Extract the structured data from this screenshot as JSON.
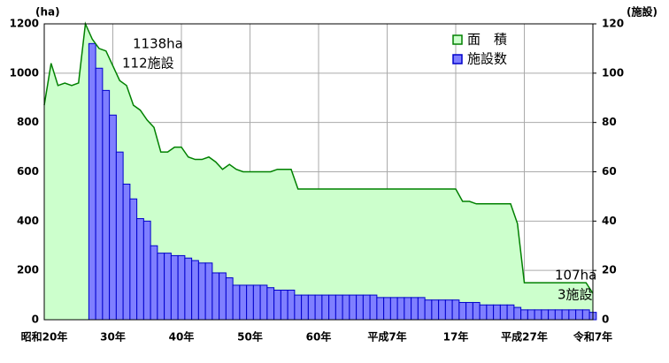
{
  "chart_data": {
    "type": "area_bar",
    "annotations": [
      "1138ha",
      "112施設",
      "107ha",
      "3施設"
    ],
    "y_unit": "(ha)",
    "y2_unit": "(施設)",
    "categories": [
      "昭和20年",
      null,
      null,
      null,
      null,
      null,
      null,
      null,
      null,
      null,
      "30年",
      null,
      null,
      null,
      null,
      null,
      null,
      null,
      null,
      null,
      "40年",
      null,
      null,
      null,
      null,
      null,
      null,
      null,
      null,
      null,
      "50年",
      null,
      null,
      null,
      null,
      null,
      null,
      null,
      null,
      null,
      "60年",
      null,
      null,
      null,
      null,
      null,
      null,
      null,
      null,
      null,
      "平成7年",
      null,
      null,
      null,
      null,
      null,
      null,
      null,
      null,
      null,
      "17年",
      null,
      null,
      null,
      null,
      null,
      null,
      null,
      null,
      null,
      "平成27年",
      null,
      null,
      null,
      null,
      null,
      null,
      null,
      null,
      null,
      "令和7年"
    ],
    "series": [
      {
        "name": "面　積",
        "color": "#008000",
        "fill": "#ccffcc",
        "axis": "y",
        "values": [
          870,
          1040,
          950,
          960,
          950,
          960,
          1200,
          1138,
          1100,
          1090,
          1030,
          970,
          950,
          870,
          850,
          810,
          780,
          680,
          680,
          700,
          700,
          660,
          650,
          650,
          660,
          640,
          610,
          630,
          610,
          600,
          600,
          600,
          600,
          600,
          610,
          610,
          610,
          530,
          530,
          530,
          530,
          530,
          530,
          530,
          530,
          530,
          530,
          530,
          530,
          530,
          530,
          530,
          530,
          530,
          530,
          530,
          530,
          530,
          530,
          530,
          530,
          480,
          480,
          470,
          470,
          470,
          470,
          470,
          470,
          390,
          150,
          150,
          150,
          150,
          150,
          150,
          150,
          150,
          150,
          150,
          107
        ]
      },
      {
        "name": "施設数",
        "color": "#7f7fff",
        "edge": "#0000cc",
        "axis": "y2",
        "values": [
          null,
          null,
          null,
          null,
          null,
          null,
          null,
          112,
          102,
          93,
          83,
          68,
          55,
          49,
          41,
          40,
          30,
          27,
          27,
          26,
          26,
          25,
          24,
          23,
          23,
          19,
          19,
          17,
          14,
          14,
          14,
          14,
          14,
          13,
          12,
          12,
          12,
          10,
          10,
          10,
          10,
          10,
          10,
          10,
          10,
          10,
          10,
          10,
          10,
          9,
          9,
          9,
          9,
          9,
          9,
          9,
          8,
          8,
          8,
          8,
          8,
          7,
          7,
          7,
          6,
          6,
          6,
          6,
          6,
          5,
          4,
          4,
          4,
          4,
          4,
          4,
          4,
          4,
          4,
          4,
          3
        ]
      }
    ],
    "ylim": [
      0,
      1200
    ],
    "yticks": [
      0,
      200,
      400,
      600,
      800,
      1000,
      1200
    ],
    "y2lim": [
      0,
      120
    ],
    "y2ticks": [
      0,
      20,
      40,
      60,
      80,
      100,
      120
    ],
    "grid": true
  }
}
